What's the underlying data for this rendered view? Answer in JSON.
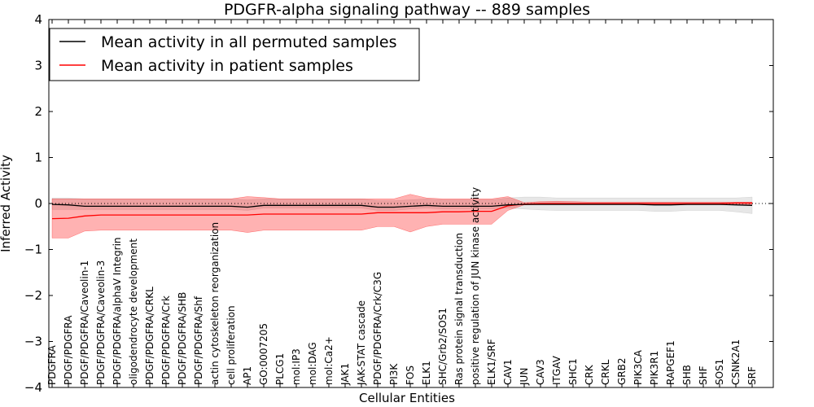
{
  "chart_data": {
    "type": "line",
    "title": "PDGFR-alpha signaling pathway -- 889 samples",
    "xlabel": "Cellular Entities",
    "ylabel": "Inferred Activity",
    "ylim": [
      -4,
      4
    ],
    "yticks": [
      -4,
      -3,
      -2,
      -1,
      0,
      1,
      2,
      3,
      4
    ],
    "ytick_labels": [
      "−4",
      "−3",
      "−2",
      "−1",
      "0",
      "1",
      "2",
      "3",
      "4"
    ],
    "legend_position": "top-left",
    "categories": [
      "PDGFRA",
      "PDGF/PDGFRA",
      "PDGF/PDGFRA/Caveolin-1",
      "PDGF/PDGFRA/Caveolin-3",
      "PDGF/PDGFRA/alphaV Integrin",
      "oligodendrocyte development",
      "PDGF/PDGFRA/CRKL",
      "PDGF/PDGFRA/Crk",
      "PDGF/PDGFRA/SHB",
      "PDGF/PDGFRA/Shf",
      "actin cytoskeleton reorganization",
      "cell proliferation",
      "AP1",
      "GO:0007205",
      "PLCG1",
      "mol:IP3",
      "mol:DAG",
      "mol:Ca2+",
      "JAK1",
      "JAK-STAT cascade",
      "PDGF/PDGFRA/Crk/C3G",
      "PI3K",
      "FOS",
      "ELK1",
      "SHC/Grb2/SOS1",
      "Ras protein signal transduction",
      "positive regulation of JUN kinase activity",
      "ELK1/SRF",
      "CAV1",
      "JUN",
      "CAV3",
      "ITGAV",
      "SHC1",
      "CRK",
      "CRKL",
      "GRB2",
      "PIK3CA",
      "PIK3R1",
      "RAPGEF1",
      "SHB",
      "SHF",
      "SOS1",
      "CSNK2A1",
      "SRF"
    ],
    "series": [
      {
        "name": "Mean activity in all permuted samples",
        "color": "#000000",
        "values": [
          -0.02,
          -0.03,
          -0.06,
          -0.06,
          -0.06,
          -0.06,
          -0.06,
          -0.06,
          -0.06,
          -0.06,
          -0.06,
          -0.06,
          -0.08,
          -0.04,
          -0.04,
          -0.04,
          -0.04,
          -0.04,
          -0.04,
          -0.04,
          -0.08,
          -0.08,
          -0.06,
          -0.04,
          -0.06,
          -0.06,
          -0.06,
          -0.06,
          -0.03,
          -0.02,
          -0.02,
          -0.02,
          -0.02,
          -0.02,
          -0.02,
          -0.02,
          -0.02,
          -0.03,
          -0.03,
          -0.02,
          -0.02,
          -0.02,
          -0.03,
          -0.04
        ],
        "band_lower": [
          -0.13,
          -0.13,
          -0.13,
          -0.13,
          -0.13,
          -0.13,
          -0.13,
          -0.13,
          -0.13,
          -0.13,
          -0.13,
          -0.13,
          -0.15,
          -0.1,
          -0.1,
          -0.1,
          -0.1,
          -0.1,
          -0.1,
          -0.1,
          -0.15,
          -0.15,
          -0.12,
          -0.1,
          -0.12,
          -0.12,
          -0.12,
          -0.12,
          -0.1,
          -0.12,
          -0.14,
          -0.15,
          -0.15,
          -0.15,
          -0.15,
          -0.15,
          -0.15,
          -0.17,
          -0.17,
          -0.15,
          -0.15,
          -0.15,
          -0.18,
          -0.22
        ],
        "band_upper": [
          0.12,
          0.12,
          0.1,
          0.1,
          0.1,
          0.1,
          0.1,
          0.1,
          0.1,
          0.1,
          0.1,
          0.1,
          0.08,
          0.1,
          0.1,
          0.1,
          0.1,
          0.1,
          0.1,
          0.1,
          0.06,
          0.06,
          0.08,
          0.1,
          0.08,
          0.08,
          0.08,
          0.08,
          0.12,
          0.14,
          0.14,
          0.12,
          0.12,
          0.12,
          0.12,
          0.12,
          0.12,
          0.12,
          0.12,
          0.12,
          0.12,
          0.12,
          0.12,
          0.14
        ]
      },
      {
        "name": "Mean activity in patient samples",
        "color": "#ff0000",
        "values": [
          -0.33,
          -0.32,
          -0.27,
          -0.25,
          -0.25,
          -0.25,
          -0.25,
          -0.25,
          -0.25,
          -0.25,
          -0.25,
          -0.25,
          -0.25,
          -0.23,
          -0.23,
          -0.23,
          -0.23,
          -0.23,
          -0.23,
          -0.23,
          -0.2,
          -0.2,
          -0.2,
          -0.2,
          -0.18,
          -0.18,
          -0.17,
          -0.17,
          -0.05,
          -0.01,
          0.0,
          0.0,
          0.0,
          0.0,
          0.0,
          0.0,
          0.0,
          0.0,
          0.0,
          0.0,
          0.0,
          0.0,
          0.01,
          0.01
        ],
        "band_lower": [
          -0.75,
          -0.75,
          -0.6,
          -0.58,
          -0.58,
          -0.58,
          -0.58,
          -0.58,
          -0.58,
          -0.58,
          -0.58,
          -0.58,
          -0.63,
          -0.58,
          -0.58,
          -0.58,
          -0.58,
          -0.58,
          -0.58,
          -0.58,
          -0.5,
          -0.5,
          -0.62,
          -0.5,
          -0.45,
          -0.45,
          -0.45,
          -0.45,
          -0.15,
          -0.03,
          -0.02,
          -0.02,
          -0.02,
          -0.02,
          -0.02,
          -0.02,
          -0.02,
          -0.02,
          -0.02,
          -0.02,
          -0.02,
          -0.02,
          -0.02,
          -0.02
        ],
        "band_upper": [
          0.1,
          0.1,
          0.1,
          0.1,
          0.1,
          0.1,
          0.1,
          0.1,
          0.1,
          0.1,
          0.1,
          0.1,
          0.15,
          0.13,
          0.1,
          0.1,
          0.1,
          0.1,
          0.1,
          0.1,
          0.1,
          0.1,
          0.2,
          0.12,
          0.1,
          0.1,
          0.1,
          0.1,
          0.15,
          0.02,
          0.04,
          0.05,
          0.04,
          0.03,
          0.03,
          0.03,
          0.03,
          0.03,
          0.03,
          0.03,
          0.03,
          0.03,
          0.03,
          0.03
        ]
      }
    ],
    "reference_line": {
      "y": 0,
      "style": "dotted"
    }
  }
}
